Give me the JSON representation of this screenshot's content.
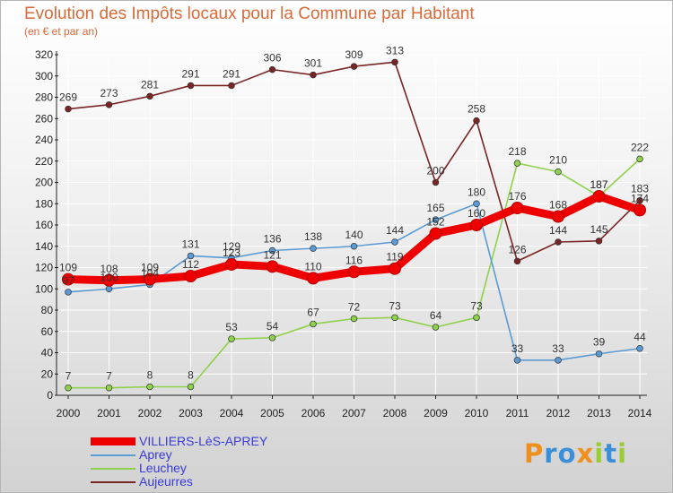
{
  "title": "Evolution des Impôts locaux pour la Commune par Habitant",
  "subtitle": "(en € et par an)",
  "logo_text": "Proxiti",
  "chart_data": {
    "type": "line",
    "title": "Evolution des Impôts locaux pour la Commune par Habitant",
    "subtitle": "(en € et par an)",
    "xlabel": "",
    "ylabel": "",
    "x": [
      "2000",
      "2001",
      "2002",
      "2003",
      "2004",
      "2005",
      "2006",
      "2007",
      "2008",
      "2009",
      "2010",
      "2011",
      "2012",
      "2013",
      "2014"
    ],
    "ylim": [
      0,
      320
    ],
    "ytick_step": 20,
    "yticks": [
      "0",
      "20",
      "40",
      "60",
      "80",
      "100",
      "120",
      "140",
      "160",
      "180",
      "200",
      "220",
      "240",
      "260",
      "280",
      "300",
      "320"
    ],
    "grid": true,
    "legend_position": "bottom-left",
    "series": [
      {
        "name": "VILLIERS-LèS-APREY",
        "color": "#ee0000",
        "values": [
          109,
          108,
          109,
          112,
          123,
          121,
          110,
          116,
          119,
          152,
          160,
          176,
          168,
          187,
          174
        ],
        "labels": [
          "109",
          "108",
          "109",
          "112",
          "123",
          "121",
          "110",
          "116",
          "119",
          "152",
          "160",
          "176",
          "168",
          "187",
          "174"
        ]
      },
      {
        "name": "Aprey",
        "color": "#5b9bd5",
        "values": [
          97,
          100,
          104,
          131,
          129,
          136,
          138,
          140,
          144,
          165,
          180,
          33,
          33,
          39,
          44
        ],
        "labels": [
          "97",
          "100",
          "104",
          "131",
          "129",
          "136",
          "138",
          "140",
          "144",
          "165",
          "180",
          "33",
          "33",
          "39",
          "44"
        ]
      },
      {
        "name": "Leuchey",
        "color": "#8ed14a",
        "values": [
          7,
          7,
          8,
          8,
          53,
          54,
          67,
          72,
          73,
          64,
          73,
          218,
          210,
          187,
          222
        ],
        "labels": [
          "7",
          "7",
          "8",
          "8",
          "53",
          "54",
          "67",
          "72",
          "73",
          "64",
          "73",
          "218",
          "210",
          "187",
          "222"
        ]
      },
      {
        "name": "Aujeurres",
        "color": "#7a2525",
        "values": [
          269,
          273,
          281,
          291,
          291,
          306,
          301,
          309,
          313,
          200,
          258,
          126,
          144,
          145,
          183
        ],
        "labels": [
          "269",
          "273",
          "281",
          "291",
          "291",
          "306",
          "301",
          "309",
          "313",
          "200",
          "258",
          "126",
          "144",
          "145",
          "183"
        ]
      }
    ]
  },
  "colors": {
    "title": "#d96a3a",
    "legend_text": "#3a3ad8",
    "grid": "#ffffff",
    "axis": "#222222"
  }
}
